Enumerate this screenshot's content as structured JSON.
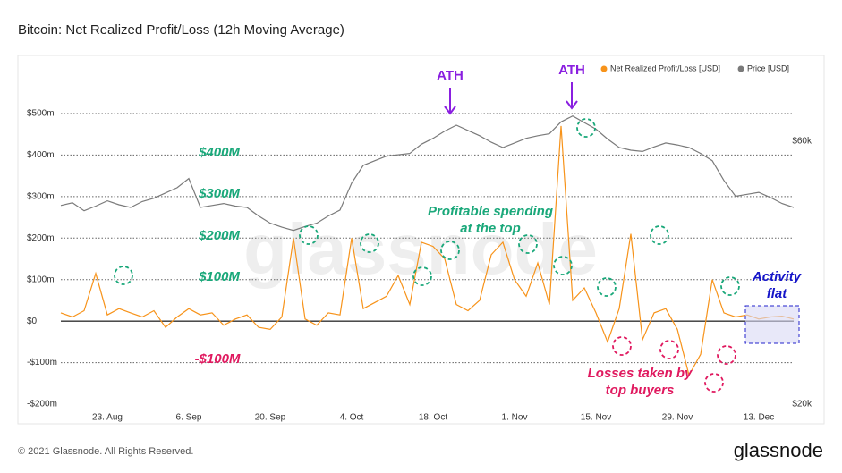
{
  "chart_data": {
    "type": "line",
    "title": "Bitcoin: Net Realized Profit/Loss (12h Moving Average)",
    "categories": [
      null,
      null,
      null,
      null,
      "23. Aug",
      null,
      null,
      null,
      null,
      null,
      null,
      "6. Sep",
      null,
      null,
      null,
      null,
      null,
      null,
      "20. Sep",
      null,
      null,
      null,
      null,
      null,
      null,
      "4. Oct",
      null,
      null,
      null,
      null,
      null,
      null,
      "18. Oct",
      null,
      null,
      null,
      null,
      null,
      null,
      "1. Nov",
      null,
      null,
      null,
      null,
      null,
      null,
      "15. Nov",
      null,
      null,
      null,
      null,
      null,
      null,
      "29. Nov",
      null,
      null,
      null,
      null,
      null,
      null,
      "13. Dec",
      null,
      null,
      null
    ],
    "series": [
      {
        "name": "Net Realized Profit/Loss [USD]",
        "color": "#f7931a",
        "values": [
          20,
          10,
          25,
          115,
          15,
          30,
          20,
          10,
          25,
          -15,
          10,
          30,
          15,
          20,
          -10,
          5,
          15,
          -15,
          -20,
          10,
          200,
          5,
          -10,
          20,
          15,
          200,
          30,
          45,
          60,
          110,
          40,
          190,
          180,
          150,
          40,
          25,
          50,
          160,
          190,
          100,
          60,
          140,
          40,
          470,
          50,
          80,
          20,
          -50,
          30,
          210,
          -45,
          20,
          30,
          -20,
          -130,
          -80,
          100,
          20,
          10,
          15,
          5,
          10,
          12,
          5
        ]
      },
      {
        "name": "Price [USD]",
        "color": "#7a7a7a",
        "axis": "y2",
        "values": [
          50.2,
          50.6,
          49.4,
          50.1,
          50.9,
          50.3,
          49.9,
          50.8,
          51.3,
          52.1,
          52.9,
          54.3,
          49.9,
          50.2,
          50.5,
          50.1,
          49.9,
          48.6,
          47.5,
          46.9,
          46.4,
          47.0,
          47.5,
          48.6,
          49.5,
          53.6,
          56.3,
          57.0,
          57.7,
          57.9,
          58.1,
          59.5,
          60.4,
          61.5,
          62.4,
          61.6,
          60.8,
          59.8,
          59.0,
          59.7,
          60.4,
          60.8,
          61.1,
          62.9,
          63.8,
          62.8,
          61.8,
          60.3,
          59.0,
          58.6,
          58.4,
          59.1,
          59.7,
          59.4,
          59.0,
          58.1,
          57.0,
          54.0,
          51.6,
          51.9,
          52.2,
          51.4,
          50.5,
          49.9
        ]
      }
    ],
    "ylim": [
      -200,
      640
    ],
    "yticks": [
      {
        "value": -200,
        "label": "-$200m"
      },
      {
        "value": -100,
        "label": "-$100m"
      },
      {
        "value": 0,
        "label": "$0"
      },
      {
        "value": 100,
        "label": "$100m"
      },
      {
        "value": 200,
        "label": "$200m"
      },
      {
        "value": 300,
        "label": "$300m"
      },
      {
        "value": 400,
        "label": "$400m"
      },
      {
        "value": 500,
        "label": "$500m"
      }
    ],
    "y2lim": [
      20,
      73
    ],
    "y2ticks": [
      {
        "value": 20,
        "label": "$20k"
      },
      {
        "value": 60,
        "label": "$60k"
      }
    ],
    "grid": true,
    "legend": "top-right",
    "annotations": [
      "ATH",
      "ATH",
      "$400M",
      "$300M",
      "$200M",
      "$100M",
      "-$100M",
      "Profitable spending",
      "at the top",
      "Losses taken by",
      "top buyers",
      "Activity",
      "flat"
    ],
    "watermark": "glassnode",
    "footer": "© 2021 Glassnode. All Rights Reserved.",
    "logo": "glassnode"
  }
}
